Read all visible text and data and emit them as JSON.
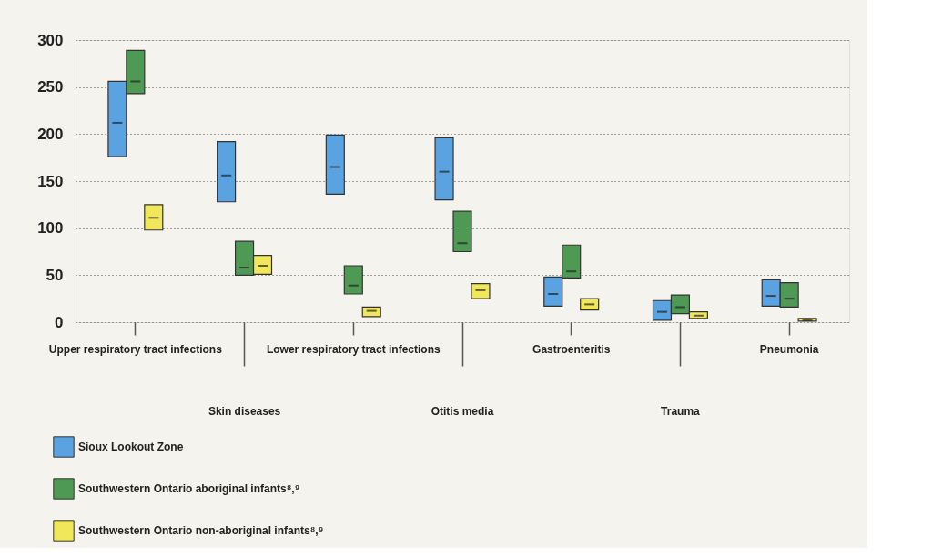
{
  "chart_data": {
    "type": "box",
    "categories": [
      "Upper respiratory tract infections",
      "Skin diseases",
      "Lower respiratory tract infections",
      "Otitis media",
      "Gastroenteritis",
      "Trauma",
      "Pneumonia"
    ],
    "series": [
      {
        "name": "Sioux Lookout Zone",
        "color": "#5aa2e0",
        "boxes": [
          {
            "low": 176,
            "q1": 176,
            "median": 212,
            "q3": 256,
            "high": 256
          },
          {
            "low": 128,
            "q1": 128,
            "median": 156,
            "q3": 192,
            "high": 192
          },
          {
            "low": 136,
            "q1": 136,
            "median": 165,
            "q3": 199,
            "high": 199
          },
          {
            "low": 130,
            "q1": 130,
            "median": 160,
            "q3": 196,
            "high": 196
          },
          {
            "low": 17,
            "q1": 17,
            "median": 30,
            "q3": 48,
            "high": 48
          },
          {
            "low": 2,
            "q1": 2,
            "median": 11,
            "q3": 23,
            "high": 23
          },
          {
            "low": 17,
            "q1": 17,
            "median": 28,
            "q3": 45,
            "high": 45
          }
        ]
      },
      {
        "name": "Southwestern Ontario aboriginal infants⁸,⁹",
        "color": "#4e9a55",
        "boxes": [
          {
            "low": 243,
            "q1": 243,
            "median": 256,
            "q3": 289,
            "high": 289
          },
          {
            "low": 50,
            "q1": 50,
            "median": 58,
            "q3": 86,
            "high": 86
          },
          {
            "low": 30,
            "q1": 30,
            "median": 39,
            "q3": 60,
            "high": 60
          },
          {
            "low": 75,
            "q1": 75,
            "median": 84,
            "q3": 118,
            "high": 118
          },
          {
            "low": 47,
            "q1": 47,
            "median": 54,
            "q3": 82,
            "high": 82
          },
          {
            "low": 9,
            "q1": 9,
            "median": 16,
            "q3": 29,
            "high": 29
          },
          {
            "low": 16,
            "q1": 16,
            "median": 25,
            "q3": 42,
            "high": 42
          }
        ]
      },
      {
        "name": "Southwestern Ontario non-aboriginal infants⁸,⁹",
        "color": "#f0e85a",
        "boxes": [
          {
            "low": 98,
            "q1": 98,
            "median": 111,
            "q3": 125,
            "high": 125
          },
          {
            "low": 51,
            "q1": 51,
            "median": 60,
            "q3": 71,
            "high": 71
          },
          {
            "low": 6,
            "q1": 6,
            "median": 12,
            "q3": 16,
            "high": 16
          },
          {
            "low": 25,
            "q1": 25,
            "median": 34,
            "q3": 41,
            "high": 41
          },
          {
            "low": 13,
            "q1": 13,
            "median": 19,
            "q3": 25,
            "high": 25
          },
          {
            "low": 4,
            "q1": 4,
            "median": 7,
            "q3": 11,
            "high": 11
          },
          {
            "low": 1,
            "q1": 1,
            "median": 2,
            "q3": 4,
            "high": 4
          }
        ]
      }
    ],
    "ylim": [
      0,
      300
    ],
    "yticks": [
      0,
      50,
      100,
      150,
      200,
      250,
      300
    ],
    "grid": "y",
    "legend": "bottom left"
  }
}
